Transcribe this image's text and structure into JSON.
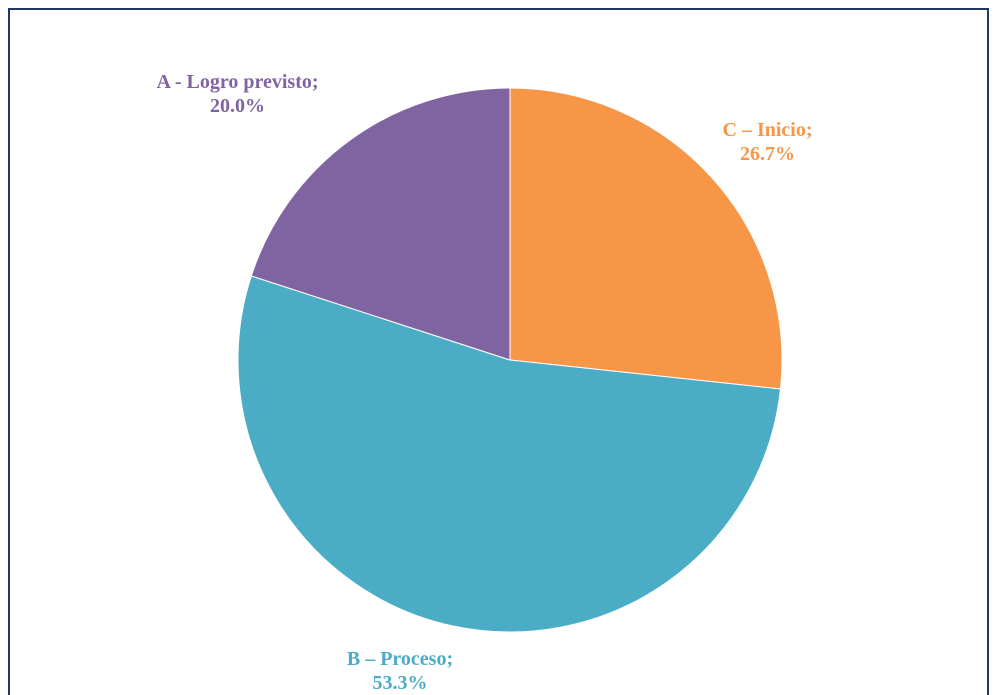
{
  "chart_data": {
    "type": "pie",
    "values": [
      26.7,
      53.3,
      20.0
    ],
    "value_labels": [
      "C – Inicio; 26.7%",
      "B – Proceso; 53.3%",
      "A - Logro previsto; 20.0%"
    ],
    "colors": [
      "#f79646",
      "#4bacc6",
      "#8064a2"
    ]
  }
}
